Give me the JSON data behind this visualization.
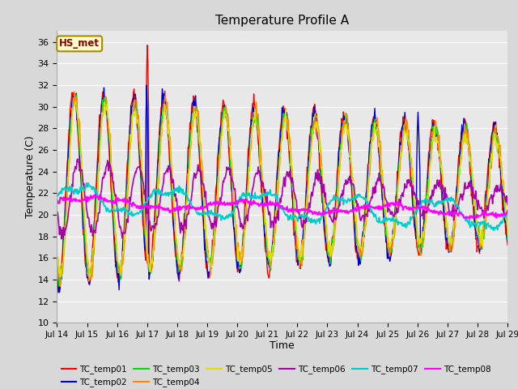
{
  "title": "Temperature Profile A",
  "xlabel": "Time",
  "ylabel": "Temperature (C)",
  "ylim": [
    10,
    37
  ],
  "yticks": [
    10,
    12,
    14,
    16,
    18,
    20,
    22,
    24,
    26,
    28,
    30,
    32,
    34,
    36
  ],
  "date_labels": [
    "Jul 14",
    "Jul 15",
    "Jul 16",
    "Jul 17",
    "Jul 18",
    "Jul 19",
    "Jul 20",
    "Jul 21",
    "Jul 22",
    "Jul 23",
    "Jul 24",
    "Jul 25",
    "Jul 26",
    "Jul 27",
    "Jul 28",
    "Jul 29"
  ],
  "annotation_text": "HS_met",
  "annotation_bg": "#FFFFCC",
  "annotation_border": "#AA8800",
  "annotation_text_color": "#880000",
  "series_colors": {
    "TC_temp01": "#FF0000",
    "TC_temp02": "#0000CC",
    "TC_temp03": "#00DD00",
    "TC_temp04": "#FF8800",
    "TC_temp05": "#DDDD00",
    "TC_temp06": "#AA00AA",
    "TC_temp07": "#00CCCC",
    "TC_temp08": "#FF00FF"
  },
  "legend_order": [
    "TC_temp01",
    "TC_temp02",
    "TC_temp03",
    "TC_temp04",
    "TC_temp05",
    "TC_temp06",
    "TC_temp07",
    "TC_temp08"
  ],
  "background_color": "#D8D8D8",
  "plot_bg": "#E8E8E8",
  "grid_color": "#FFFFFF",
  "figsize": [
    6.4,
    4.8
  ],
  "dpi": 100
}
